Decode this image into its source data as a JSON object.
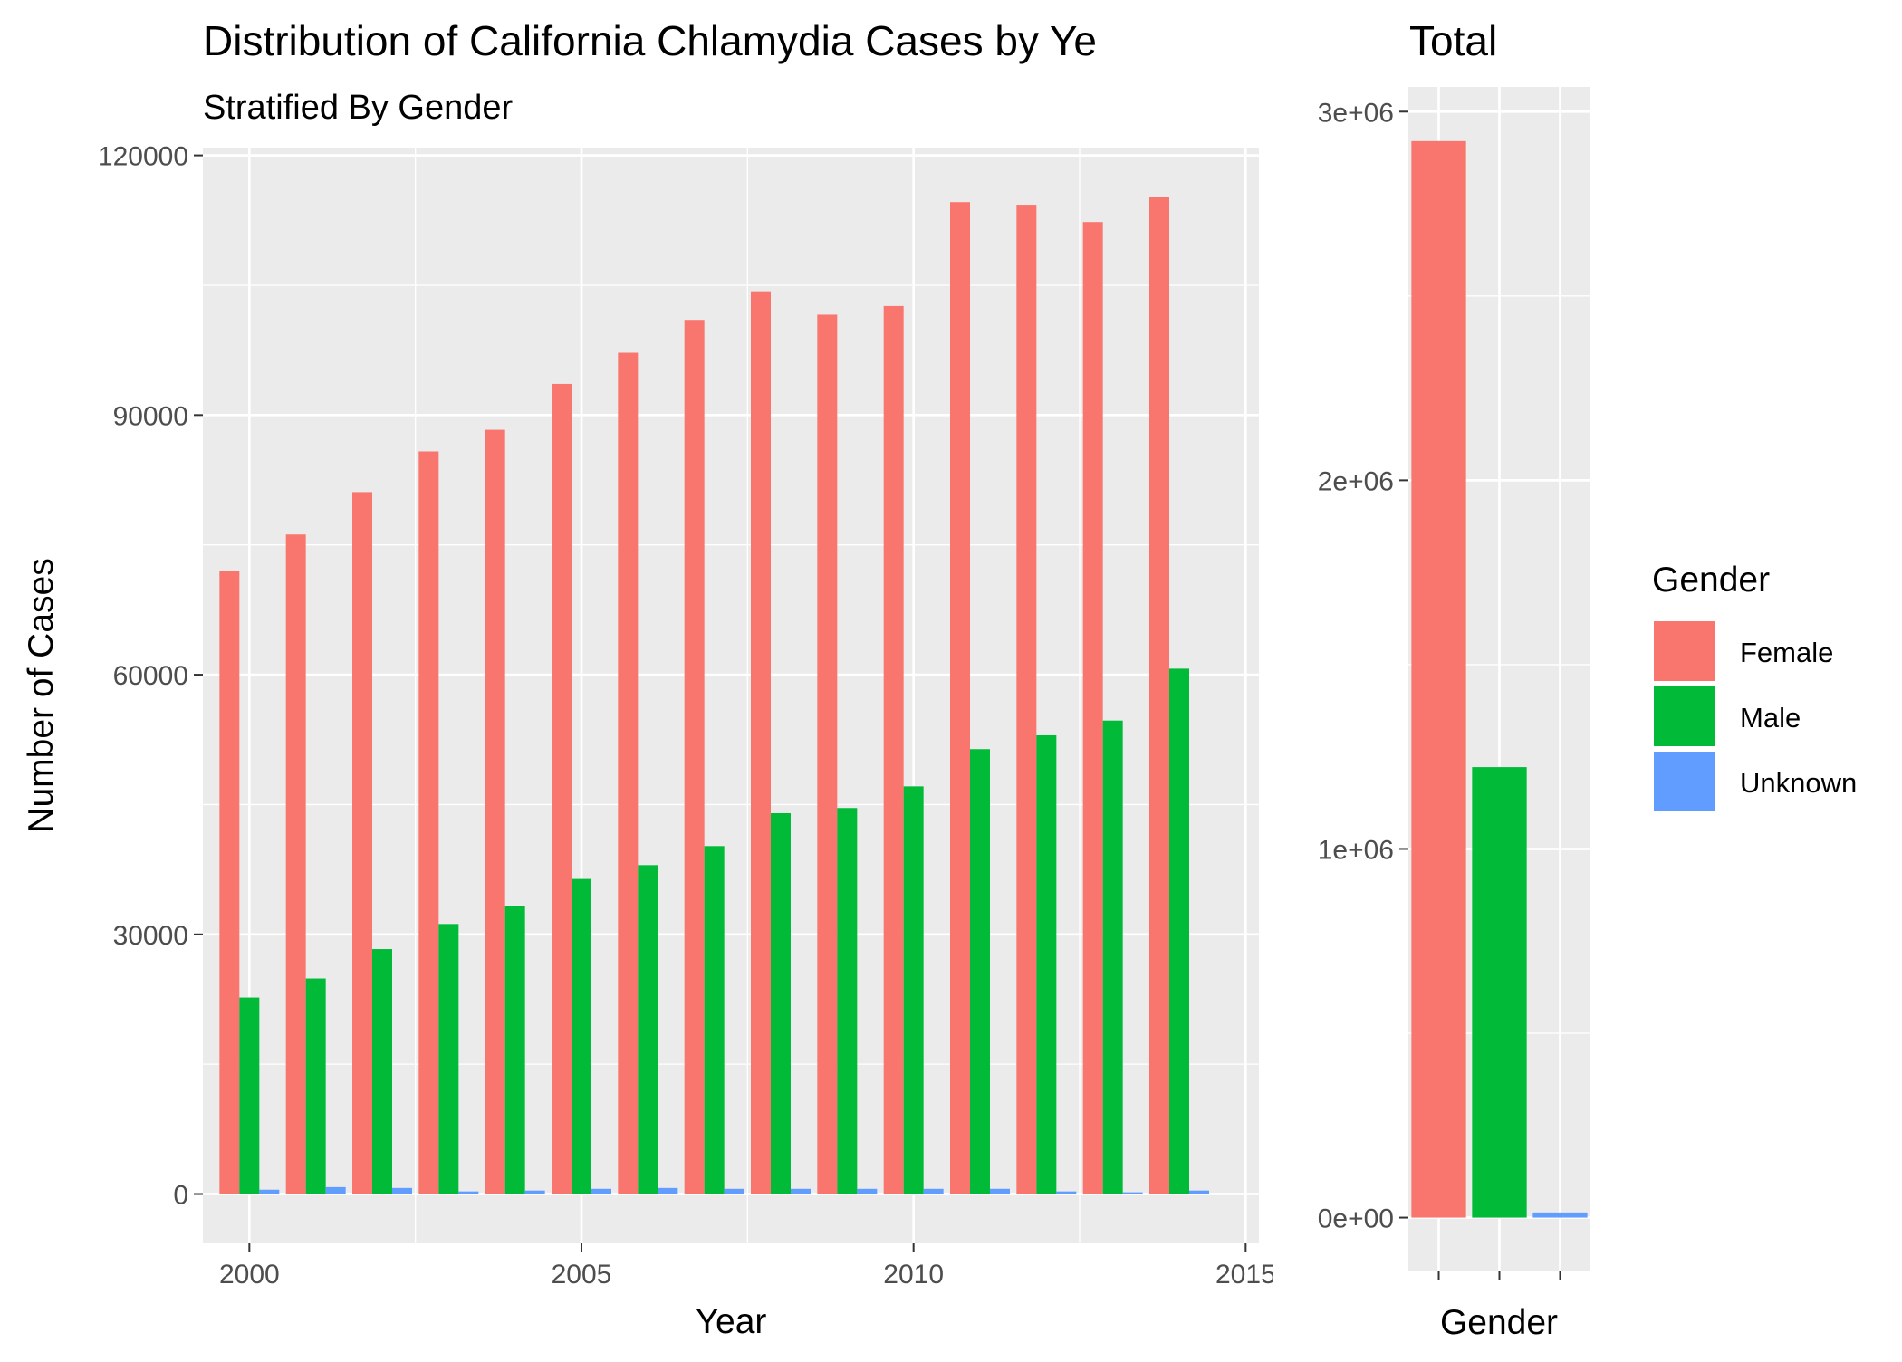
{
  "colors": {
    "Female": "#F8766D",
    "Male": "#00BA38",
    "Unknown": "#619CFF",
    "panel": "#EBEBEB",
    "grid": "#FFFFFF"
  },
  "legend": {
    "title": "Gender",
    "placement": "right",
    "entries": [
      "Female",
      "Male",
      "Unknown"
    ]
  },
  "chart_data": [
    {
      "type": "bar",
      "title": "Distribution of California Chlamydia Cases by Ye",
      "subtitle": "Stratified By Gender",
      "xlabel": "Year",
      "ylabel": "Number of Cases",
      "x_ticks": [
        "2000",
        "2005",
        "2010",
        "2015"
      ],
      "y_ticks": [
        "0",
        "30000",
        "60000",
        "90000",
        "120000"
      ],
      "xlim": [
        1999.3,
        2015.2
      ],
      "ylim": [
        -5700,
        120900
      ],
      "grid": true,
      "categories": [
        2000,
        2001,
        2002,
        2003,
        2004,
        2005,
        2006,
        2007,
        2008,
        2009,
        2010,
        2011,
        2012,
        2013,
        2014
      ],
      "series": [
        {
          "name": "Female",
          "values": [
            72000,
            76200,
            81100,
            85800,
            88300,
            93600,
            97200,
            101000,
            104300,
            101600,
            102600,
            114600,
            114300,
            112300,
            115200
          ]
        },
        {
          "name": "Male",
          "values": [
            22700,
            24900,
            28300,
            31200,
            33300,
            36400,
            38000,
            40200,
            44000,
            44600,
            47100,
            51400,
            53000,
            54700,
            60700
          ]
        },
        {
          "name": "Unknown",
          "values": [
            500,
            800,
            700,
            300,
            400,
            600,
            700,
            600,
            600,
            600,
            600,
            600,
            300,
            200,
            400
          ]
        }
      ]
    },
    {
      "type": "bar",
      "title": "Total",
      "xlabel": "Gender",
      "ylabel": "",
      "y_ticks": [
        "0e+00",
        "1e+06",
        "2e+06",
        "3e+06"
      ],
      "ylim": [
        -146000,
        3067000
      ],
      "grid": true,
      "categories": [
        "Female",
        "Male",
        "Unknown"
      ],
      "values": [
        2920000,
        1222000,
        14000
      ]
    }
  ]
}
